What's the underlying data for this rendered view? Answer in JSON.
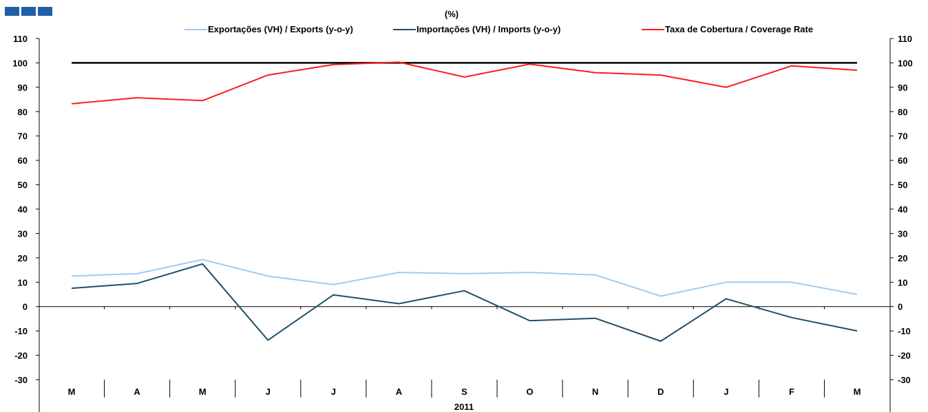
{
  "logo": {
    "color": "#1f5fa8"
  },
  "chart_data": {
    "type": "line",
    "unit_label": "(%)",
    "title": "",
    "xlabel": "2011",
    "ylabel": "",
    "categories": [
      "M",
      "A",
      "M",
      "J",
      "J",
      "A",
      "S",
      "O",
      "N",
      "D",
      "J",
      "F",
      "M"
    ],
    "ylim": [
      -30,
      110
    ],
    "yticks": [
      110,
      100,
      90,
      80,
      70,
      60,
      50,
      40,
      30,
      20,
      10,
      0,
      -10,
      -20,
      -30
    ],
    "reference_line": {
      "value": 100,
      "color": "#000000"
    },
    "legend_position": "top-center",
    "grid": false,
    "series": [
      {
        "name": "Exportações (VH) / Exports (y-o-y)",
        "color": "#9ecbf0",
        "values": [
          12.5,
          13.5,
          19.3,
          12.5,
          9.0,
          14.0,
          13.5,
          14.0,
          13.0,
          4.3,
          10.0,
          10.0,
          5.0
        ]
      },
      {
        "name": "Importações (VH) / Imports (y-o-y)",
        "color": "#1f4e66",
        "values": [
          7.5,
          9.5,
          17.5,
          -13.8,
          4.8,
          1.2,
          6.5,
          -5.8,
          -4.8,
          -14.2,
          3.2,
          -4.5,
          -10.0
        ]
      },
      {
        "name": "Taxa de Cobertura / Coverage Rate",
        "color": "#ff1a1a",
        "values": [
          83.2,
          85.7,
          84.5,
          95.0,
          99.3,
          100.3,
          94.2,
          99.5,
          96.0,
          95.0,
          90.0,
          98.8,
          97.0
        ]
      }
    ]
  }
}
